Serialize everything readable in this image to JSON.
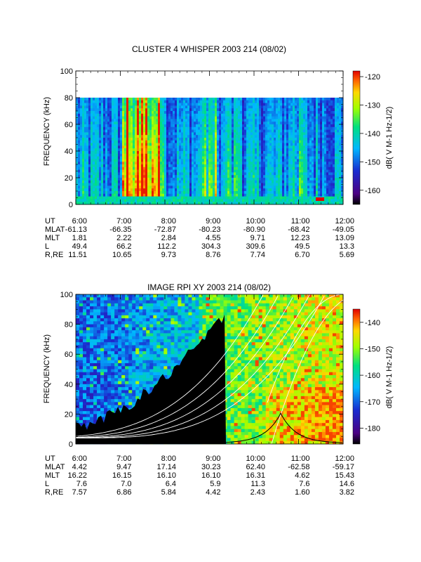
{
  "chart_data": [
    {
      "type": "heatmap",
      "title": "CLUSTER 4 WHISPER 2003 214 (08/02)",
      "ylabel": "FREQUENCY (kHz)",
      "ylim": [
        0,
        100
      ],
      "y_ticks": [
        "0",
        "20",
        "40",
        "60",
        "80",
        "100"
      ],
      "x_ticks": [
        "6:00",
        "7:00",
        "8:00",
        "9:00",
        "10:00",
        "11:00",
        "12:00"
      ],
      "data_top_khz": 80,
      "colorbar": {
        "label": "dB( V M-1 Hz-1/2)",
        "ticks": [
          "-120",
          "-130",
          "-140",
          "-150",
          "-160"
        ],
        "range": [
          -165,
          -118
        ]
      },
      "ephemeris": [
        {
          "label": "UT",
          "values": [
            "6:00",
            "7:00",
            "8:00",
            "9:00",
            "10:00",
            "11:00",
            "12:00"
          ]
        },
        {
          "label": "MLAT",
          "values": [
            "-61.13",
            "-66.35",
            "-72.87",
            "-80.23",
            "-80.90",
            "-68.42",
            "-49.05"
          ]
        },
        {
          "label": "MLT",
          "values": [
            "1.81",
            "2.22",
            "2.84",
            "4.55",
            "9.71",
            "12.23",
            "13.09"
          ]
        },
        {
          "label": "L",
          "values": [
            "49.4",
            "66.2",
            "112.2",
            "304.3",
            "309.6",
            "49.5",
            "13.3"
          ]
        },
        {
          "label": "R,RE",
          "values": [
            "11.51",
            "10.65",
            "9.73",
            "8.76",
            "7.74",
            "6.70",
            "5.69"
          ]
        }
      ]
    },
    {
      "type": "heatmap",
      "title": "IMAGE RPI XY 2003 214 (08/02)",
      "ylabel": "FREQUENCY (kHz)",
      "ylim": [
        0,
        100
      ],
      "y_ticks": [
        "0",
        "20",
        "40",
        "60",
        "80",
        "100"
      ],
      "x_ticks": [
        "6:00",
        "7:00",
        "8:00",
        "9:00",
        "10:00",
        "11:00",
        "12:00"
      ],
      "colorbar": {
        "label": "dB( V M-1 Hz-1/2)",
        "ticks": [
          "-140",
          "-150",
          "-160",
          "-170",
          "-180"
        ],
        "range": [
          -186,
          -135
        ]
      },
      "ephemeris": [
        {
          "label": "UT",
          "values": [
            "6:00",
            "7:00",
            "8:00",
            "9:00",
            "10:00",
            "11:00",
            "12:00"
          ]
        },
        {
          "label": "MLAT",
          "values": [
            "4.42",
            "9.47",
            "17.14",
            "30.23",
            "62.40",
            "-62.58",
            "-59.17"
          ]
        },
        {
          "label": "MLT",
          "values": [
            "16.22",
            "16.15",
            "16.10",
            "16.10",
            "16.31",
            "4.62",
            "15.43"
          ]
        },
        {
          "label": "L",
          "values": [
            "7.6",
            "7.0",
            "6.4",
            "5.9",
            "11.3",
            "7.6",
            "14.6"
          ]
        },
        {
          "label": "R,RE",
          "values": [
            "7.57",
            "6.86",
            "5.84",
            "4.42",
            "2.43",
            "1.60",
            "3.82"
          ]
        }
      ]
    }
  ],
  "colors": {
    "background": "#ffffff",
    "axis": "#000000",
    "overlay_lines": "#ffffff",
    "plasma_curve": "#000000"
  }
}
